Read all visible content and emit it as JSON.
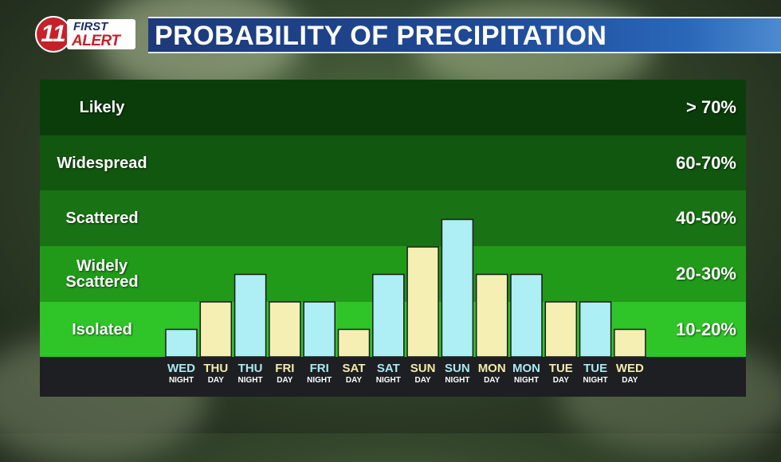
{
  "header": {
    "logo_number": "11",
    "logo_first": "FIRST",
    "logo_alert": "ALERT",
    "title": "PROBABILITY OF PRECIPITATION"
  },
  "bands": [
    {
      "label": "Likely",
      "range": "> 70%",
      "color": "#0b3d0b"
    },
    {
      "label": "Widespread",
      "range": "60-70%",
      "color": "#12570f"
    },
    {
      "label": "Scattered",
      "range": "40-50%",
      "color": "#197314"
    },
    {
      "label": "Widely Scattered",
      "range": "20-30%",
      "color": "#219a1a"
    },
    {
      "label": "Isolated",
      "range": "10-20%",
      "color": "#2fc428"
    }
  ],
  "colors": {
    "night_bar": "#aeeef5",
    "day_bar": "#f5efb4",
    "axis_bg": "#1e1f22",
    "night_text": "#a8eaf3",
    "day_text": "#f3eba8"
  },
  "chart_data": {
    "type": "bar",
    "categories": [
      "WED NIGHT",
      "THU DAY",
      "THU NIGHT",
      "FRI DAY",
      "FRI NIGHT",
      "SAT DAY",
      "SAT NIGHT",
      "SUN DAY",
      "SUN NIGHT",
      "MON DAY",
      "MON NIGHT",
      "TUE DAY",
      "TUE NIGHT",
      "WED DAY"
    ],
    "days": [
      "WED",
      "THU",
      "THU",
      "FRI",
      "FRI",
      "SAT",
      "SAT",
      "SUN",
      "SUN",
      "MON",
      "MON",
      "TUE",
      "TUE",
      "WED"
    ],
    "periods": [
      "NIGHT",
      "DAY",
      "NIGHT",
      "DAY",
      "NIGHT",
      "DAY",
      "NIGHT",
      "DAY",
      "NIGHT",
      "DAY",
      "NIGHT",
      "DAY",
      "NIGHT",
      "DAY"
    ],
    "levels": [
      0.5,
      1.0,
      1.5,
      1.0,
      1.0,
      0.5,
      1.5,
      2.0,
      2.5,
      1.5,
      1.5,
      1.0,
      1.0,
      0.5
    ],
    "level_scale": "bands from bottom: 0=base of Isolated, 1=Isolated/Widely Scattered boundary, 2=Widely Scattered/Scattered boundary, 3=Scattered/Widespread boundary",
    "ylim": [
      0,
      5
    ]
  }
}
